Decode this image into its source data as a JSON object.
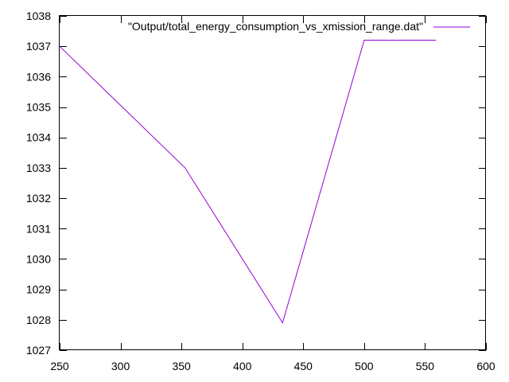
{
  "chart_data": {
    "type": "line",
    "title": "",
    "xlabel": "",
    "ylabel": "",
    "xlim": [
      250,
      600
    ],
    "ylim": [
      1027,
      1038
    ],
    "xticks": [
      250,
      300,
      350,
      400,
      450,
      500,
      550,
      600
    ],
    "yticks": [
      1027,
      1028,
      1029,
      1030,
      1031,
      1032,
      1033,
      1034,
      1035,
      1036,
      1037,
      1038
    ],
    "grid": false,
    "legend_position": "top-right",
    "series": [
      {
        "name": "\"Output/total_energy_consumption_vs_xmission_range.dat\"",
        "color": "#9400d3",
        "x": [
          250,
          353,
          433,
          500,
          559
        ],
        "y": [
          1037.0,
          1033.0,
          1027.9,
          1037.2,
          1037.2
        ]
      }
    ]
  }
}
